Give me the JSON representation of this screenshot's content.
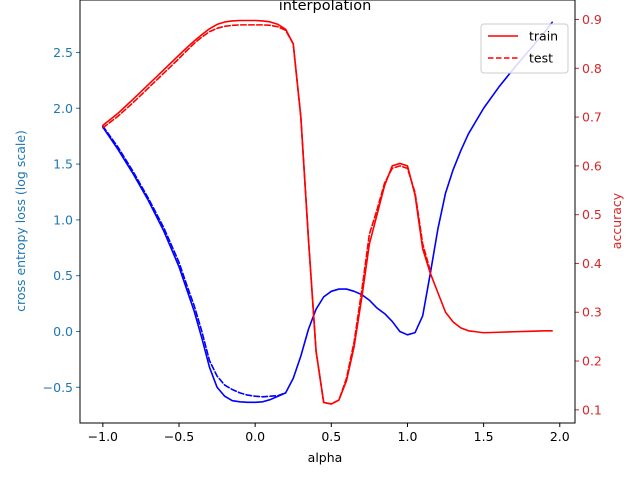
{
  "chart_data": {
    "type": "line",
    "title": "interpolation",
    "xlabel": "alpha",
    "ylabel_left": "cross entropy loss (log scale)",
    "ylabel_right": "accuracy",
    "xlim": [
      -1.15,
      2.1
    ],
    "ylim_left": [
      -0.82,
      2.97
    ],
    "ylim_right": [
      0.073,
      0.94
    ],
    "x_ticks": [
      -1.0,
      -0.5,
      0.0,
      0.5,
      1.0,
      1.5,
      2.0
    ],
    "x_tick_labels": [
      "−1.0",
      "−0.5",
      "0.0",
      "0.5",
      "1.0",
      "1.5",
      "2.0"
    ],
    "y_left_ticks": [
      -0.5,
      0.0,
      0.5,
      1.0,
      1.5,
      2.0,
      2.5
    ],
    "y_left_tick_labels": [
      "−0.5",
      "0.0",
      "0.5",
      "1.0",
      "1.5",
      "2.0",
      "2.5"
    ],
    "y_right_ticks": [
      0.1,
      0.2,
      0.3,
      0.4,
      0.5,
      0.6,
      0.7,
      0.8,
      0.9
    ],
    "y_right_tick_labels": [
      "0.1",
      "0.2",
      "0.3",
      "0.4",
      "0.5",
      "0.6",
      "0.7",
      "0.8",
      "0.9"
    ],
    "grid": false,
    "legend_position": "top-right",
    "colors": {
      "loss": "#0000ff",
      "accuracy": "#ff0000",
      "left_axis": "#1f77b4",
      "right_axis": "#d62728"
    },
    "legend": [
      {
        "label": "train",
        "style": "solid"
      },
      {
        "label": "test",
        "style": "dashed"
      }
    ],
    "series": [
      {
        "name": "train",
        "metric": "loss",
        "axis": "left",
        "style": "solid",
        "x": [
          -1.0,
          -0.9,
          -0.8,
          -0.7,
          -0.6,
          -0.5,
          -0.45,
          -0.4,
          -0.35,
          -0.3,
          -0.25,
          -0.2,
          -0.15,
          -0.1,
          -0.05,
          0.0,
          0.05,
          0.1,
          0.15,
          0.2,
          0.25,
          0.3,
          0.35,
          0.4,
          0.45,
          0.5,
          0.55,
          0.6,
          0.65,
          0.7,
          0.75,
          0.8,
          0.85,
          0.9,
          0.95,
          1.0,
          1.05,
          1.1,
          1.15,
          1.2,
          1.25,
          1.3,
          1.35,
          1.4,
          1.5,
          1.6,
          1.7,
          1.8,
          1.9,
          1.95
        ],
        "y": [
          1.83,
          1.63,
          1.41,
          1.17,
          0.9,
          0.58,
          0.38,
          0.18,
          -0.06,
          -0.32,
          -0.5,
          -0.58,
          -0.62,
          -0.63,
          -0.635,
          -0.635,
          -0.63,
          -0.61,
          -0.58,
          -0.55,
          -0.42,
          -0.22,
          0.02,
          0.2,
          0.31,
          0.36,
          0.38,
          0.38,
          0.36,
          0.33,
          0.28,
          0.21,
          0.16,
          0.09,
          0.0,
          -0.03,
          -0.01,
          0.14,
          0.52,
          0.92,
          1.24,
          1.45,
          1.62,
          1.77,
          2.0,
          2.19,
          2.36,
          2.52,
          2.68,
          2.77
        ]
      },
      {
        "name": "test",
        "metric": "loss",
        "axis": "left",
        "style": "dashed",
        "x": [
          -1.0,
          -0.9,
          -0.8,
          -0.7,
          -0.6,
          -0.5,
          -0.45,
          -0.4,
          -0.35,
          -0.3,
          -0.25,
          -0.2,
          -0.15,
          -0.1,
          -0.05,
          0.0,
          0.05,
          0.1,
          0.15,
          0.2
        ],
        "y": [
          1.84,
          1.65,
          1.43,
          1.19,
          0.93,
          0.62,
          0.42,
          0.23,
          0.0,
          -0.26,
          -0.4,
          -0.48,
          -0.52,
          -0.55,
          -0.57,
          -0.58,
          -0.585,
          -0.58,
          -0.575,
          -0.55
        ]
      },
      {
        "name": "train",
        "metric": "accuracy",
        "axis": "right",
        "style": "solid",
        "x": [
          -1.0,
          -0.9,
          -0.8,
          -0.7,
          -0.6,
          -0.5,
          -0.45,
          -0.4,
          -0.35,
          -0.3,
          -0.25,
          -0.2,
          -0.15,
          -0.1,
          -0.05,
          0.0,
          0.05,
          0.1,
          0.15,
          0.2,
          0.25,
          0.3,
          0.35,
          0.4,
          0.45,
          0.5,
          0.55,
          0.6,
          0.65,
          0.7,
          0.75,
          0.8,
          0.85,
          0.9,
          0.95,
          1.0,
          1.05,
          1.1,
          1.15,
          1.2,
          1.25,
          1.3,
          1.35,
          1.4,
          1.45,
          1.5,
          1.6,
          1.7,
          1.8,
          1.9,
          1.95
        ],
        "y": [
          0.683,
          0.708,
          0.737,
          0.767,
          0.797,
          0.827,
          0.842,
          0.856,
          0.869,
          0.881,
          0.89,
          0.895,
          0.897,
          0.898,
          0.898,
          0.898,
          0.897,
          0.895,
          0.89,
          0.88,
          0.85,
          0.7,
          0.45,
          0.22,
          0.115,
          0.112,
          0.12,
          0.16,
          0.23,
          0.33,
          0.44,
          0.5,
          0.56,
          0.6,
          0.605,
          0.6,
          0.54,
          0.43,
          0.38,
          0.34,
          0.3,
          0.28,
          0.268,
          0.262,
          0.26,
          0.258,
          0.259,
          0.26,
          0.261,
          0.262,
          0.262
        ]
      },
      {
        "name": "test",
        "metric": "accuracy",
        "axis": "right",
        "style": "dashed",
        "x": [
          -1.0,
          -0.9,
          -0.8,
          -0.7,
          -0.6,
          -0.5,
          -0.45,
          -0.4,
          -0.35,
          -0.3,
          -0.25,
          -0.2,
          -0.15,
          -0.1,
          -0.05,
          0.0,
          0.05,
          0.1,
          0.15,
          0.2,
          0.25,
          0.3,
          0.35,
          0.4,
          0.45,
          0.5,
          0.55,
          0.6,
          0.65,
          0.7,
          0.75,
          0.8,
          0.85,
          0.9,
          0.95,
          1.0,
          1.05,
          1.1,
          1.15
        ],
        "y": [
          0.678,
          0.702,
          0.73,
          0.76,
          0.79,
          0.82,
          0.836,
          0.851,
          0.864,
          0.875,
          0.882,
          0.886,
          0.888,
          0.889,
          0.889,
          0.889,
          0.889,
          0.888,
          0.885,
          0.878,
          0.85,
          0.7,
          0.45,
          0.22,
          0.115,
          0.112,
          0.12,
          0.165,
          0.24,
          0.345,
          0.46,
          0.51,
          0.565,
          0.595,
          0.6,
          0.595,
          0.545,
          0.44,
          0.385
        ]
      }
    ]
  }
}
